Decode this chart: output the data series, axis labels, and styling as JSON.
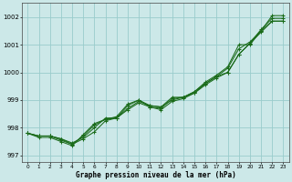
{
  "title": "Graphe pression niveau de la mer (hPa)",
  "bg_color": "#cce8e8",
  "grid_color": "#99cccc",
  "line_color": "#1a6b1a",
  "marker_color": "#1a6b1a",
  "xlim": [
    -0.5,
    23.5
  ],
  "ylim": [
    996.75,
    1002.5
  ],
  "yticks": [
    997,
    998,
    999,
    1000,
    1001,
    1002
  ],
  "xticks": [
    0,
    1,
    2,
    3,
    4,
    5,
    6,
    7,
    8,
    9,
    10,
    11,
    12,
    13,
    14,
    15,
    16,
    17,
    18,
    19,
    20,
    21,
    22,
    23
  ],
  "line1": [
    997.8,
    997.7,
    997.7,
    997.6,
    997.4,
    997.7,
    998.1,
    998.3,
    998.35,
    998.8,
    999.0,
    998.8,
    998.75,
    999.1,
    999.1,
    999.3,
    999.65,
    999.9,
    1000.2,
    1001.0,
    1001.0,
    1001.5,
    1002.05,
    1002.05
  ],
  "line2": [
    997.8,
    997.65,
    997.65,
    997.5,
    997.35,
    997.75,
    998.15,
    998.3,
    998.4,
    998.85,
    999.0,
    998.75,
    998.7,
    999.05,
    999.1,
    999.25,
    999.55,
    999.8,
    1000.0,
    1000.65,
    1001.05,
    1001.55,
    1001.95,
    1001.95
  ],
  "line3": [
    997.8,
    997.7,
    997.7,
    997.6,
    997.45,
    997.65,
    998.0,
    998.35,
    998.35,
    998.7,
    998.95,
    998.8,
    998.75,
    999.0,
    999.1,
    999.3,
    999.6,
    999.85,
    1000.15,
    1000.85,
    1001.1,
    1001.5,
    1001.85,
    1001.85
  ],
  "line4": [
    997.8,
    997.7,
    997.7,
    997.55,
    997.4,
    997.6,
    997.85,
    998.25,
    998.35,
    998.65,
    998.9,
    998.75,
    998.65,
    998.95,
    999.05,
    999.25,
    999.6,
    999.85,
    1000.0,
    1000.65,
    1001.05,
    1001.45,
    1001.85,
    1001.85
  ]
}
